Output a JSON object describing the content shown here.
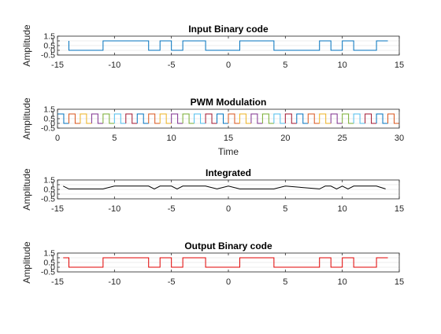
{
  "chart_data": [
    {
      "type": "line",
      "title": "Input Binary code",
      "xlabel": "",
      "ylabel": "Amplitude",
      "xlim": [
        -15,
        15
      ],
      "ylim": [
        -0.5,
        1.5
      ],
      "xticks": [
        "-15",
        "-10",
        "-5",
        "0",
        "5",
        "10",
        "15"
      ],
      "yticks": [
        "-0.5",
        "0",
        "0.5",
        "1",
        "1.5"
      ],
      "grid": "y",
      "series": [
        {
          "color": "#0072bd",
          "step": true,
          "x": [
            -14.0,
            -14.0,
            -11.0,
            -11.0,
            -7.0,
            -7.0,
            -6.0,
            -6.0,
            -5.0,
            -5.0,
            -4.0,
            -4.0,
            -2.0,
            -2.0,
            1.0,
            1.0,
            4.0,
            4.0,
            8.0,
            8.0,
            9.0,
            9.0,
            10.0,
            10.0,
            11.0,
            11.0,
            13.0,
            13.0,
            14.0
          ],
          "y": [
            1,
            0,
            0,
            1,
            1,
            0,
            0,
            1,
            1,
            0,
            0,
            1,
            1,
            0,
            0,
            1,
            1,
            0,
            0,
            1,
            1,
            0,
            0,
            1,
            1,
            0,
            0,
            1,
            1
          ]
        }
      ]
    },
    {
      "type": "line",
      "title": "PWM Modulation",
      "xlabel": "Time",
      "ylabel": "Amplitude",
      "xlim": [
        0,
        30
      ],
      "ylim": [
        -0.5,
        1.5
      ],
      "xticks": [
        "0",
        "5",
        "10",
        "15",
        "20",
        "25",
        "30"
      ],
      "yticks": [
        "-0.5",
        "0",
        "0.5",
        "1",
        "1.5"
      ],
      "grid": "y",
      "period": 1.0,
      "cycle_count": 30,
      "high_fraction": 0.55,
      "series_colors": [
        "#0072bd",
        "#d95319",
        "#edb120",
        "#7e2f8e",
        "#77ac30",
        "#4dbeee",
        "#a2142f"
      ]
    },
    {
      "type": "line",
      "title": "Integrated",
      "xlabel": "",
      "ylabel": "Amplitude",
      "xlim": [
        -15,
        15
      ],
      "ylim": [
        -0.5,
        1.5
      ],
      "xticks": [
        "-15",
        "-10",
        "-5",
        "0",
        "5",
        "10",
        "15"
      ],
      "yticks": [
        "-0.5",
        "0",
        "0.5",
        "1",
        "1.5"
      ],
      "grid": "y",
      "series": [
        {
          "color": "#000000",
          "x": [
            -14.5,
            -14.0,
            -11.0,
            -10.0,
            -7.0,
            -6.5,
            -6.0,
            -5.5,
            -5.0,
            -4.5,
            -4.0,
            -2.0,
            -1.0,
            0.0,
            1.0,
            4.0,
            5.0,
            8.0,
            8.5,
            9.0,
            9.5,
            10.0,
            10.5,
            11.0,
            13.0,
            13.8
          ],
          "y": [
            0.85,
            0.55,
            0.55,
            0.85,
            0.85,
            0.55,
            0.85,
            0.85,
            0.85,
            0.55,
            0.85,
            0.85,
            0.55,
            0.85,
            0.55,
            0.55,
            0.85,
            0.55,
            0.85,
            0.85,
            0.55,
            0.85,
            0.55,
            0.85,
            0.85,
            0.55
          ]
        }
      ]
    },
    {
      "type": "line",
      "title": "Output Binary code",
      "xlabel": "",
      "ylabel": "Amplitude",
      "xlim": [
        -15,
        15
      ],
      "ylim": [
        -0.5,
        1.5
      ],
      "xticks": [
        "-15",
        "-10",
        "-5",
        "0",
        "5",
        "10",
        "15"
      ],
      "yticks": [
        "-0.5",
        "0",
        "0.5",
        "1",
        "1.5"
      ],
      "grid": "y",
      "series": [
        {
          "color": "#e00000",
          "step": true,
          "x": [
            -14.5,
            -14.0,
            -14.0,
            -11.0,
            -11.0,
            -7.0,
            -7.0,
            -6.0,
            -6.0,
            -5.0,
            -5.0,
            -4.0,
            -4.0,
            -2.0,
            -2.0,
            1.0,
            1.0,
            4.0,
            4.0,
            8.0,
            8.0,
            9.0,
            9.0,
            10.0,
            10.0,
            11.0,
            11.0,
            13.0,
            13.0,
            14.0
          ],
          "y": [
            1,
            1,
            0,
            0,
            1,
            1,
            0,
            0,
            1,
            1,
            0,
            0,
            1,
            1,
            0,
            0,
            1,
            1,
            0,
            0,
            1,
            1,
            0,
            0,
            1,
            1,
            0,
            0,
            1,
            1
          ]
        }
      ]
    }
  ]
}
